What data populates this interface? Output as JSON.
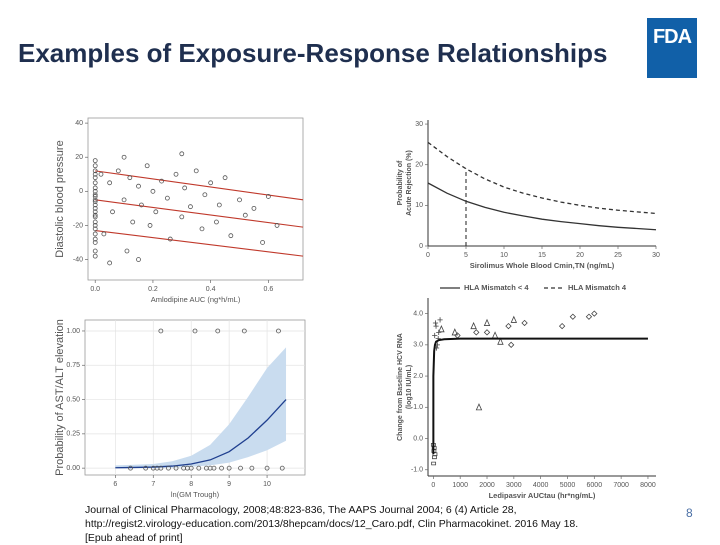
{
  "slide": {
    "title": "Examples of Exposure-Response Relationships",
    "logo": "FDA",
    "footnote": "Journal of Clinical Pharmacology, 2008;48:823-836, The AAPS Journal 2004; 6 (4) Article 28, http://regist2.virology-education.com/2013/8hepcam/docs/12_Caro.pdf, Clin Pharmacokinet. 2016 May 18. [Epub ahead of print]",
    "page_number": 8
  },
  "chart_data": [
    {
      "type": "scatter",
      "y_label": "Diastolic blood pressure",
      "x_label": "Amlodipine AUC (ng*h/mL)",
      "xlim": [
        -0.025,
        0.72
      ],
      "ylim": [
        -52,
        43
      ],
      "xticks": [
        {
          "value": 0,
          "label": "0.0"
        },
        0.2,
        0.4,
        0.6
      ],
      "yticks": [
        -40,
        -20,
        0,
        20,
        40
      ],
      "lines": [
        {
          "color": "#c0392b",
          "x": [
            0,
            0.72
          ],
          "values": [
            12,
            -5
          ]
        },
        {
          "color": "#c0392b",
          "x": [
            0,
            0.72
          ],
          "values": [
            -5,
            -21
          ]
        },
        {
          "color": "#c0392b",
          "x": [
            0,
            0.72
          ],
          "values": [
            -23,
            -38
          ]
        }
      ],
      "series": [
        {
          "mode": "markers",
          "marker": "circle",
          "color": "#555555",
          "x": [
            0,
            0,
            0,
            0,
            0,
            0,
            0,
            0,
            0,
            0,
            0,
            0,
            0,
            0,
            0,
            0,
            0,
            0,
            0,
            0,
            0,
            0,
            0,
            0,
            0,
            0.02,
            0.03,
            0.05,
            0.06,
            0.08,
            0.1,
            0.11,
            0.12,
            0.13,
            0.15,
            0.16,
            0.18,
            0.19,
            0.2,
            0.21,
            0.23,
            0.25,
            0.26,
            0.28,
            0.3,
            0.31,
            0.33,
            0.35,
            0.37,
            0.38,
            0.4,
            0.42,
            0.43,
            0.45,
            0.47,
            0.5,
            0.52,
            0.55,
            0.58,
            0.6,
            0.63,
            0.15,
            0.05,
            0.1,
            0.3
          ],
          "values": [
            18,
            12,
            8,
            5,
            2,
            0,
            -2,
            -5,
            -8,
            -10,
            -12,
            -15,
            -18,
            -20,
            -22,
            -25,
            -28,
            -30,
            -35,
            -38,
            15,
            -3,
            -6,
            10,
            -14,
            10,
            -25,
            5,
            -12,
            12,
            -5,
            -35,
            8,
            -18,
            3,
            -8,
            15,
            -20,
            0,
            -12,
            6,
            -4,
            -28,
            10,
            -15,
            2,
            -9,
            12,
            -22,
            -2,
            5,
            -18,
            -8,
            8,
            -26,
            -5,
            -14,
            -10,
            -30,
            -3,
            -20,
            -40,
            -42,
            20,
            22
          ]
        }
      ]
    },
    {
      "type": "line",
      "y_label": [
        "Probability of",
        "Acute Rejection (%)"
      ],
      "x_label": "Sirolimus Whole Blood Cmin,TN (ng/mL)",
      "xlim": [
        0,
        30
      ],
      "ylim": [
        0,
        31
      ],
      "xticks": [
        0,
        5,
        10,
        15,
        20,
        25,
        30
      ],
      "yticks": [
        0,
        10,
        20,
        30
      ],
      "legend": "bottom",
      "lines": [
        {
          "color": "#333333",
          "dash": true,
          "x": [
            5,
            5
          ],
          "values": [
            0,
            19
          ]
        }
      ],
      "series": [
        {
          "name": "HLA Mismatch < 4",
          "mode": "line",
          "color": "#333333",
          "dash": false,
          "x": [
            0,
            2.5,
            5,
            7.5,
            10,
            12.5,
            15,
            17.5,
            20,
            22.5,
            25,
            27.5,
            30
          ],
          "values": [
            15.5,
            13,
            11,
            9.5,
            8.3,
            7.4,
            6.6,
            6.0,
            5.5,
            5.0,
            4.6,
            4.3,
            4.0
          ]
        },
        {
          "name": "HLA Mismatch 4",
          "mode": "line",
          "color": "#333333",
          "dash": true,
          "x": [
            0,
            2.5,
            5,
            7.5,
            10,
            12.5,
            15,
            17.5,
            20,
            22.5,
            25,
            27.5,
            30
          ],
          "values": [
            25.5,
            22,
            19,
            16.5,
            14.5,
            13,
            11.8,
            10.8,
            10,
            9.3,
            8.8,
            8.4,
            8.0
          ]
        }
      ]
    },
    {
      "type": "line",
      "y_label": "Probability of AST/ALT elevation",
      "x_label": "ln(GM Trough)",
      "xlim": [
        5.2,
        11
      ],
      "ylim": [
        -0.05,
        1.08
      ],
      "xticks": [
        6,
        7,
        8,
        9,
        10
      ],
      "yticks": [
        {
          "value": 0,
          "label": "0.00"
        },
        {
          "value": 0.25,
          "label": "0.25"
        },
        {
          "value": 0.5,
          "label": "0.50"
        },
        {
          "value": 0.75,
          "label": "0.75"
        },
        {
          "value": 1,
          "label": "1.00"
        }
      ],
      "grid": true,
      "series": [
        {
          "mode": "band",
          "color": "#c9dcef",
          "x": [
            6,
            6.5,
            7,
            7.5,
            8,
            8.5,
            9,
            9.5,
            10,
            10.5
          ],
          "values": [
            0.02,
            0.025,
            0.03,
            0.05,
            0.09,
            0.17,
            0.32,
            0.52,
            0.73,
            0.88
          ],
          "lower": [
            0,
            0,
            0,
            0.003,
            0.01,
            0.02,
            0.04,
            0.08,
            0.13,
            0.2
          ]
        },
        {
          "mode": "line",
          "color": "#1f3f8f",
          "dash": false,
          "x": [
            6,
            6.5,
            7,
            7.5,
            8,
            8.5,
            9,
            9.5,
            10,
            10.5
          ],
          "values": [
            0.003,
            0.005,
            0.008,
            0.015,
            0.03,
            0.06,
            0.12,
            0.22,
            0.35,
            0.5
          ]
        },
        {
          "mode": "markers",
          "marker": "circle",
          "color": "#555555",
          "x": [
            6.4,
            6.8,
            7.0,
            7.2,
            7.4,
            7.6,
            7.8,
            8.0,
            8.2,
            8.4,
            8.6,
            8.8,
            9.0,
            9.3,
            9.6,
            10.0,
            10.4,
            7.1,
            7.9,
            8.5,
            7.2,
            8.1,
            8.7,
            9.4,
            10.3
          ],
          "values": [
            0,
            0,
            0,
            0,
            0,
            0,
            0,
            0,
            0,
            0,
            0,
            0,
            0,
            0,
            0,
            0,
            0,
            0,
            0,
            0,
            1,
            1,
            1,
            1,
            1
          ]
        }
      ]
    },
    {
      "type": "scatter",
      "y_label": [
        "Change from Baseline HCV RNA",
        "(log10 IU/mL)"
      ],
      "x_label": "Ledipasvir AUCtau (hr*ng/mL)",
      "xlim": [
        -200,
        8300
      ],
      "ylim": [
        -1.2,
        4.5
      ],
      "xticks": [
        0,
        1000,
        2000,
        3000,
        4000,
        5000,
        6000,
        7000,
        8000
      ],
      "yticks": [
        {
          "value": -1,
          "label": "-1.0"
        },
        {
          "value": 0,
          "label": "0.0"
        },
        {
          "value": 1,
          "label": "1.0"
        },
        {
          "value": 2,
          "label": "2.0"
        },
        {
          "value": 3,
          "label": "3.0"
        },
        {
          "value": 4,
          "label": "4.0"
        }
      ],
      "series": [
        {
          "mode": "markers",
          "marker": "triangle",
          "color": "#444444",
          "x": [
            300,
            1500,
            2000,
            2300,
            2500,
            3000,
            1700,
            800
          ],
          "values": [
            3.5,
            3.6,
            3.7,
            3.3,
            3.1,
            3.8,
            1.0,
            3.4
          ]
        },
        {
          "mode": "markers",
          "marker": "diamond",
          "color": "#444444",
          "x": [
            900,
            1600,
            2000,
            2800,
            3400,
            4800,
            5200,
            5800,
            6000,
            2900
          ],
          "values": [
            3.3,
            3.4,
            3.4,
            3.6,
            3.7,
            3.6,
            3.9,
            3.9,
            4.0,
            3.0
          ]
        },
        {
          "mode": "markers",
          "marker": "plus",
          "color": "#444444",
          "x": [
            50,
            100,
            150,
            200,
            250,
            80,
            120,
            180
          ],
          "values": [
            3.3,
            3.6,
            3.0,
            3.4,
            3.8,
            3.7,
            2.9,
            3.2
          ]
        },
        {
          "mode": "markers",
          "marker": "square",
          "color": "#444444",
          "x": [
            0,
            20,
            40,
            10,
            30,
            60
          ],
          "values": [
            -0.2,
            -0.4,
            -0.6,
            -0.8,
            -0.3,
            -0.5
          ]
        },
        {
          "mode": "line",
          "color": "#111111",
          "dash": false,
          "width": 2,
          "x": [
            0,
            0,
            30,
            60,
            100,
            200,
            400,
            1000,
            8000
          ],
          "values": [
            -0.5,
            2.0,
            2.8,
            3.0,
            3.1,
            3.15,
            3.18,
            3.2,
            3.2
          ]
        }
      ]
    }
  ]
}
